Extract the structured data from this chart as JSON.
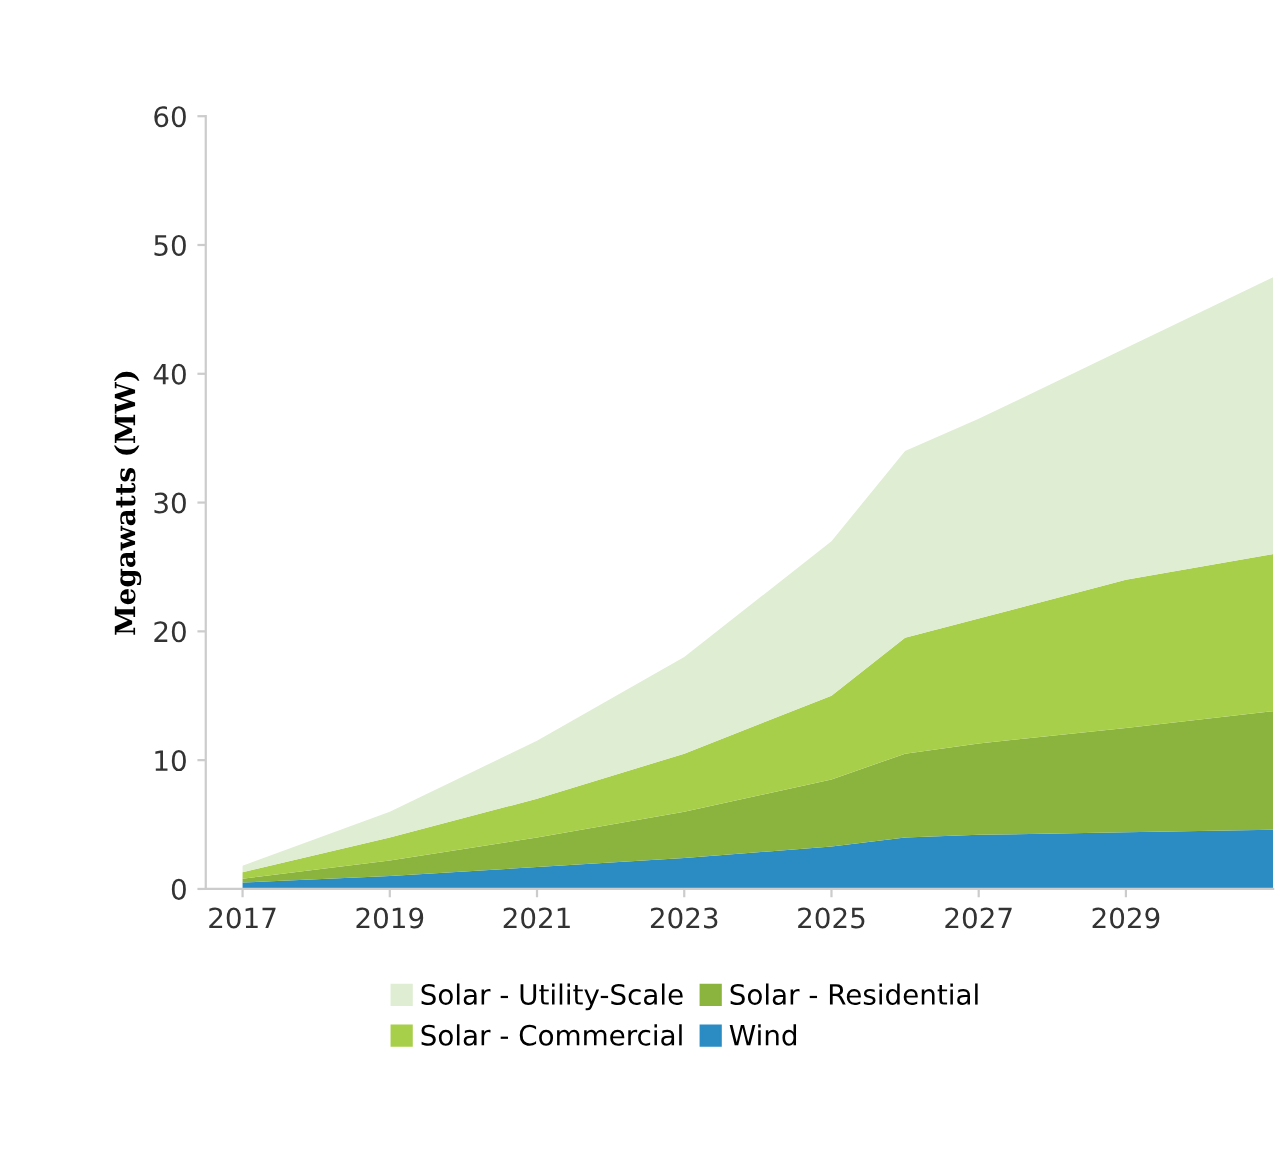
{
  "chart_data": {
    "type": "area",
    "stacked": true,
    "ylabel": "Megawatts (MW)",
    "x": [
      2017,
      2019,
      2021,
      2023,
      2025,
      2026,
      2027,
      2029,
      2031
    ],
    "xlim": [
      2016.5,
      2031
    ],
    "xticks": [
      2017,
      2019,
      2021,
      2023,
      2025,
      2027,
      2029
    ],
    "ylim": [
      0,
      60
    ],
    "yticks": [
      0,
      10,
      20,
      30,
      40,
      50,
      60
    ],
    "grid": false,
    "legend": "bottom",
    "series": [
      {
        "name": "Wind",
        "color": "#2b8cc4",
        "values": [
          0.5,
          1.0,
          1.7,
          2.4,
          3.3,
          4.0,
          4.2,
          4.4,
          4.6
        ]
      },
      {
        "name": "Solar - Residential",
        "color": "#8ab43e",
        "values": [
          0.3,
          1.2,
          2.3,
          3.6,
          5.2,
          6.5,
          7.1,
          8.1,
          9.2
        ]
      },
      {
        "name": "Solar - Commercial",
        "color": "#a8cf4a",
        "values": [
          0.5,
          1.8,
          3.0,
          4.5,
          6.5,
          9.0,
          9.7,
          11.5,
          12.2
        ]
      },
      {
        "name": "Solar - Utility-Scale",
        "color": "#dfedd3",
        "values": [
          0.5,
          2.0,
          4.5,
          7.5,
          12.0,
          14.5,
          15.5,
          18.0,
          21.5
        ]
      }
    ]
  }
}
